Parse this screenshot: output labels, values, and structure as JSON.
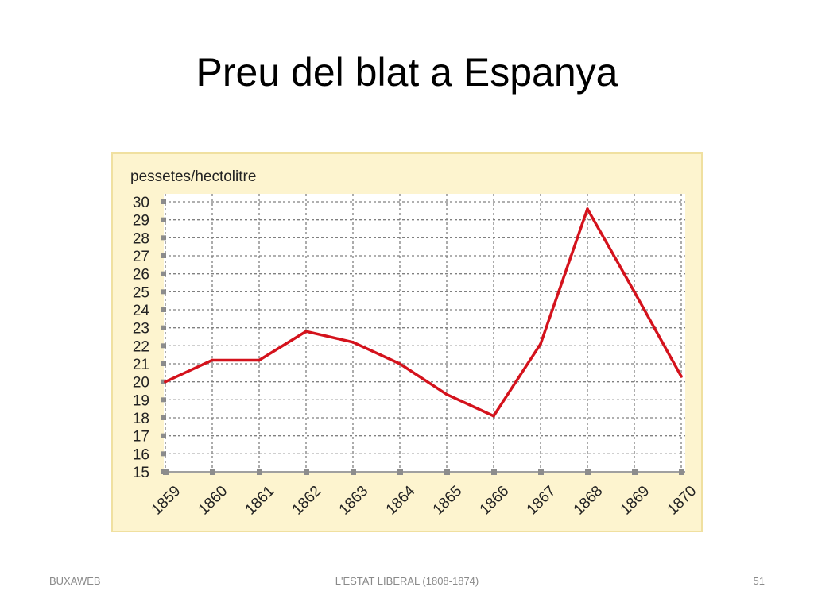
{
  "slide": {
    "title": "Preu del blat a Espanya"
  },
  "footer": {
    "left": "BUXAWEB",
    "center": "L'ESTAT LIBERAL (1808-1874)",
    "right": "51"
  },
  "colors": {
    "panel": "#fdf4cf",
    "plot_bg": "#ffffff",
    "grid": "#808080",
    "line": "#d4121c",
    "tick_marker": "#8c8c8c"
  },
  "chart_data": {
    "type": "line",
    "title": "",
    "ylabel": "pessetes/hectolitre",
    "xlabel": "",
    "categories": [
      "1859",
      "1860",
      "1861",
      "1862",
      "1863",
      "1864",
      "1865",
      "1866",
      "1867",
      "1868",
      "1869",
      "1870"
    ],
    "series": [
      {
        "name": "Preu del blat",
        "values": [
          20.0,
          21.2,
          21.2,
          22.8,
          22.2,
          21.0,
          19.3,
          18.1,
          22.1,
          29.6,
          25.0,
          20.3
        ]
      }
    ],
    "ylim": [
      15,
      30
    ],
    "yticks": [
      30,
      29,
      28,
      27,
      26,
      25,
      24,
      23,
      22,
      21,
      20,
      19,
      18,
      17,
      16,
      15
    ],
    "grid": true,
    "legend": "none"
  }
}
